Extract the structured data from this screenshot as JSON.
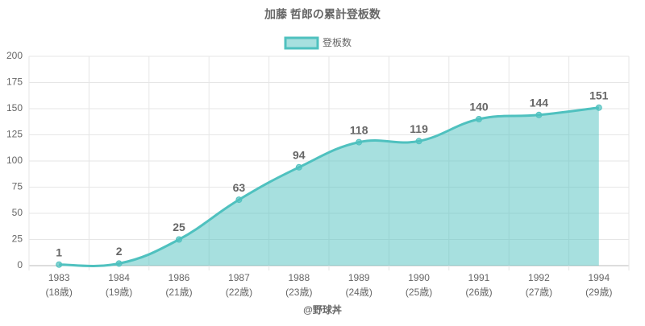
{
  "chart_data": {
    "type": "area",
    "title": "加藤 哲郎の累計登板数",
    "categories": [
      "1983",
      "1984",
      "1986",
      "1987",
      "1988",
      "1989",
      "1990",
      "1991",
      "1992",
      "1994"
    ],
    "category_sublabels": [
      "(18歳)",
      "(19歳)",
      "(21歳)",
      "(22歳)",
      "(23歳)",
      "(24歳)",
      "(25歳)",
      "(26歳)",
      "(27歳)",
      "(29歳)"
    ],
    "series": [
      {
        "name": "登板数",
        "color": "#4fc1bf",
        "values": [
          1,
          2,
          25,
          63,
          94,
          118,
          119,
          140,
          144,
          151
        ]
      }
    ],
    "ylim": [
      0,
      200
    ],
    "yticks": [
      0,
      25,
      50,
      75,
      100,
      125,
      150,
      175,
      200
    ],
    "grid": true,
    "legend": "top",
    "footer": "@野球丼"
  }
}
